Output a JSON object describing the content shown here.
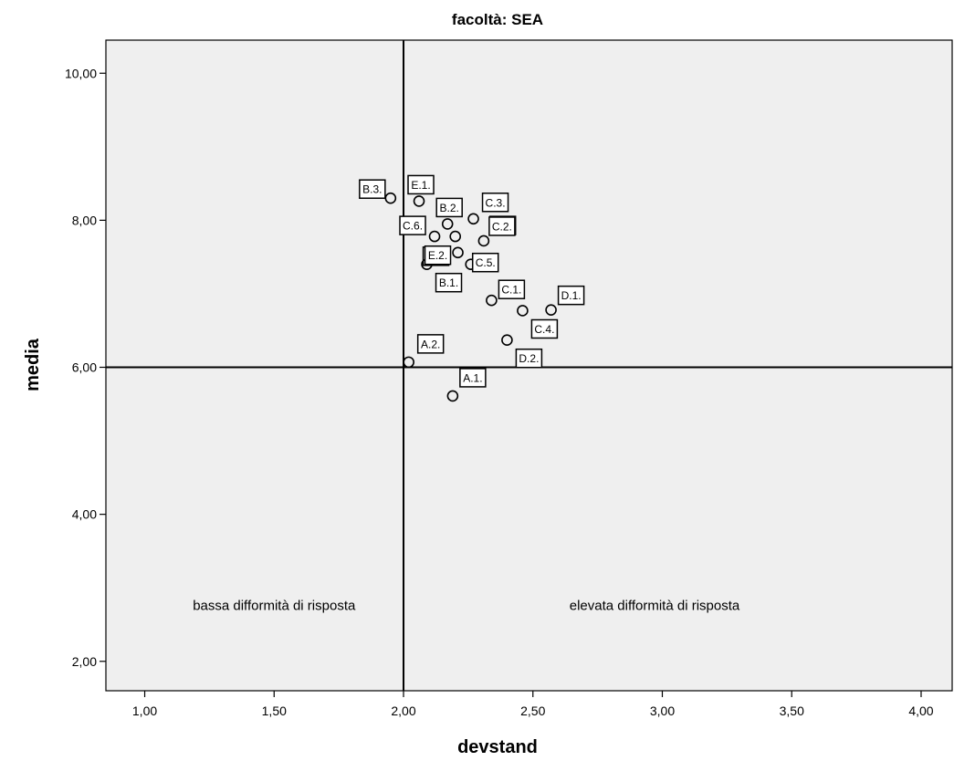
{
  "chart_data": {
    "type": "scatter",
    "title": "facoltà: SEA",
    "xlabel": "devstand",
    "ylabel": "media",
    "xlim": [
      0.85,
      4.12
    ],
    "ylim": [
      1.6,
      10.45
    ],
    "x_ticks": [
      1.0,
      1.5,
      2.0,
      2.5,
      3.0,
      3.5,
      4.0
    ],
    "x_tick_labels": [
      "1,00",
      "1,50",
      "2,00",
      "2,50",
      "3,00",
      "3,50",
      "4,00"
    ],
    "y_ticks": [
      2.0,
      4.0,
      6.0,
      8.0,
      10.0
    ],
    "y_tick_labels": [
      "2,00",
      "4,00",
      "6,00",
      "8,00",
      "10,00"
    ],
    "reference_lines": {
      "x": 2.0,
      "y": 6.0
    },
    "quadrant_labels": [
      {
        "text": "bassa difformità di risposta",
        "x": 1.5,
        "y": 2.7
      },
      {
        "text": "elevata difformità di risposta",
        "x": 2.97,
        "y": 2.7
      }
    ],
    "points": [
      {
        "label": "B.3.",
        "x": 1.95,
        "y": 8.3,
        "dx": -34,
        "dy": -20
      },
      {
        "label": "E.1.",
        "x": 2.06,
        "y": 8.26,
        "dx": -12,
        "dy": -28
      },
      {
        "label": "B.2.",
        "x": 2.17,
        "y": 7.95,
        "dx": -12,
        "dy": -28
      },
      {
        "label": "C.3.",
        "x": 2.27,
        "y": 8.02,
        "dx": 10,
        "dy": -28
      },
      {
        "label": "C.6.",
        "x": 2.12,
        "y": 7.78,
        "dx": -38,
        "dy": -22
      },
      {
        "label": "C.2.",
        "x": 2.2,
        "y": 7.78,
        "dx": 38,
        "dy": -22
      },
      {
        "label": "C.2.",
        "x": 2.31,
        "y": 7.72,
        "dx": 6,
        "dy": -26
      },
      {
        "label": "E.2.",
        "x": 2.21,
        "y": 7.56,
        "dx": -38,
        "dy": -6
      },
      {
        "label": "E.2.",
        "x": 2.09,
        "y": 7.4,
        "dx": -2,
        "dy": -20
      },
      {
        "label": "B.1.",
        "x": 2.09,
        "y": 7.4,
        "dx": 10,
        "dy": 10
      },
      {
        "label": "C.5.",
        "x": 2.26,
        "y": 7.4,
        "dx": 2,
        "dy": -12
      },
      {
        "label": "C.1.",
        "x": 2.34,
        "y": 6.91,
        "dx": 8,
        "dy": -22
      },
      {
        "label": "C.4.",
        "x": 2.46,
        "y": 6.77,
        "dx": 10,
        "dy": 10
      },
      {
        "label": "D.1.",
        "x": 2.57,
        "y": 6.78,
        "dx": 8,
        "dy": -26
      },
      {
        "label": "D.2.",
        "x": 2.4,
        "y": 6.37,
        "dx": 10,
        "dy": 10
      },
      {
        "label": "A.2.",
        "x": 2.02,
        "y": 6.07,
        "dx": 10,
        "dy": -30
      },
      {
        "label": "A.1.",
        "x": 2.19,
        "y": 5.61,
        "dx": 8,
        "dy": -30
      }
    ],
    "grid": false,
    "legend": "none",
    "colors": {
      "plot_bg": "#efefef",
      "frame": "#000000",
      "marker": "#000000"
    }
  }
}
